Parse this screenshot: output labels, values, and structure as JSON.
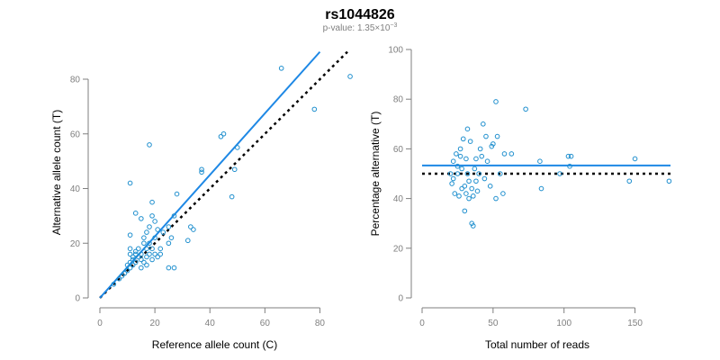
{
  "header": {
    "title": "rs1044826",
    "pvalue_prefix": "p-value: 1.35×10",
    "pvalue_exp": "−3"
  },
  "colors": {
    "points": "#1f8fce",
    "fit": "#1e88e5",
    "reference": "#000000",
    "axis": "#7f7f7f"
  },
  "chart_data": [
    {
      "type": "scatter",
      "xlabel": "Reference allele count (C)",
      "ylabel": "Alternative allele count (T)",
      "xlim": [
        0,
        90
      ],
      "ylim": [
        0,
        80
      ],
      "xticks": [
        0,
        20,
        40,
        60,
        80
      ],
      "yticks": [
        0,
        20,
        40,
        60,
        80
      ],
      "grid": false,
      "points": [
        [
          5,
          5
        ],
        [
          7,
          7
        ],
        [
          8,
          8
        ],
        [
          9,
          9
        ],
        [
          10,
          10
        ],
        [
          10,
          12
        ],
        [
          11,
          11
        ],
        [
          11,
          13
        ],
        [
          11,
          16
        ],
        [
          11,
          18
        ],
        [
          12,
          12
        ],
        [
          12,
          14
        ],
        [
          12,
          15
        ],
        [
          13,
          13
        ],
        [
          13,
          16
        ],
        [
          13,
          17
        ],
        [
          14,
          15
        ],
        [
          14,
          18
        ],
        [
          15,
          11
        ],
        [
          15,
          14
        ],
        [
          15,
          16
        ],
        [
          16,
          13
        ],
        [
          16,
          20
        ],
        [
          16,
          22
        ],
        [
          17,
          12
        ],
        [
          17,
          15
        ],
        [
          17,
          18
        ],
        [
          17,
          24
        ],
        [
          18,
          16
        ],
        [
          18,
          20
        ],
        [
          18,
          26
        ],
        [
          19,
          14
        ],
        [
          19,
          18
        ],
        [
          19,
          30
        ],
        [
          20,
          16
        ],
        [
          20,
          22
        ],
        [
          20,
          28
        ],
        [
          21,
          15
        ],
        [
          21,
          25
        ],
        [
          22,
          16
        ],
        [
          22,
          18
        ],
        [
          23,
          24
        ],
        [
          25,
          11
        ],
        [
          25,
          20
        ],
        [
          25,
          26
        ],
        [
          26,
          22
        ],
        [
          27,
          11
        ],
        [
          27,
          30
        ],
        [
          28,
          38
        ],
        [
          32,
          21
        ],
        [
          33,
          26
        ],
        [
          34,
          25
        ],
        [
          37,
          46
        ],
        [
          37,
          47
        ],
        [
          44,
          59
        ],
        [
          45,
          60
        ],
        [
          48,
          37
        ],
        [
          49,
          47
        ],
        [
          50,
          55
        ],
        [
          66,
          84
        ],
        [
          78,
          69
        ],
        [
          91,
          81
        ],
        [
          11,
          42
        ],
        [
          18,
          56
        ],
        [
          19,
          35
        ],
        [
          13,
          31
        ],
        [
          11,
          23
        ],
        [
          15,
          29
        ]
      ],
      "fit": {
        "from": [
          0,
          0
        ],
        "to": [
          80,
          90
        ]
      },
      "reference": {
        "from": [
          0,
          0
        ],
        "to": [
          90,
          90
        ]
      }
    },
    {
      "type": "scatter",
      "xlabel": "Total number of reads",
      "ylabel": "Percentage alternative (T)",
      "xlim": [
        0,
        175
      ],
      "ylim": [
        0,
        100
      ],
      "xticks": [
        0,
        50,
        100,
        150
      ],
      "yticks": [
        0,
        20,
        40,
        60,
        80,
        100
      ],
      "grid": false,
      "points": [
        [
          20,
          50
        ],
        [
          21,
          46
        ],
        [
          22,
          48
        ],
        [
          22,
          55
        ],
        [
          23,
          42
        ],
        [
          24,
          58
        ],
        [
          25,
          50
        ],
        [
          25,
          53
        ],
        [
          26,
          41
        ],
        [
          27,
          57
        ],
        [
          27,
          60
        ],
        [
          28,
          44
        ],
        [
          28,
          52
        ],
        [
          29,
          64
        ],
        [
          30,
          35
        ],
        [
          30,
          45
        ],
        [
          31,
          42
        ],
        [
          31,
          56
        ],
        [
          32,
          50
        ],
        [
          32,
          68
        ],
        [
          33,
          40
        ],
        [
          33,
          47
        ],
        [
          34,
          63
        ],
        [
          35,
          30
        ],
        [
          35,
          44
        ],
        [
          36,
          29
        ],
        [
          36,
          41
        ],
        [
          37,
          52
        ],
        [
          38,
          47
        ],
        [
          38,
          56
        ],
        [
          39,
          43
        ],
        [
          40,
          50
        ],
        [
          41,
          60
        ],
        [
          42,
          57
        ],
        [
          43,
          70
        ],
        [
          44,
          48
        ],
        [
          45,
          65
        ],
        [
          46,
          55
        ],
        [
          48,
          45
        ],
        [
          49,
          61
        ],
        [
          50,
          62
        ],
        [
          52,
          79
        ],
        [
          52,
          40
        ],
        [
          53,
          65
        ],
        [
          55,
          50
        ],
        [
          57,
          42
        ],
        [
          58,
          58
        ],
        [
          63,
          58
        ],
        [
          73,
          76
        ],
        [
          83,
          55
        ],
        [
          84,
          44
        ],
        [
          97,
          50
        ],
        [
          103,
          57
        ],
        [
          104,
          53
        ],
        [
          105,
          57
        ],
        [
          146,
          47
        ],
        [
          150,
          56
        ],
        [
          174,
          47
        ]
      ],
      "fit_y": 53.3,
      "reference_y": 50
    }
  ]
}
